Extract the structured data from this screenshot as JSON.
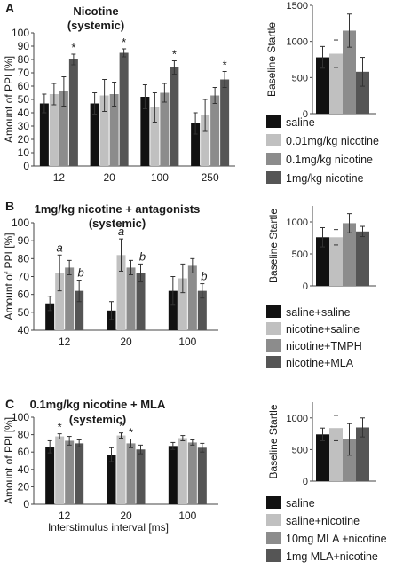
{
  "colors": {
    "black": "#111111",
    "light": "#c0c0c0",
    "mid": "#8c8c8c",
    "dark": "#555555"
  },
  "chart_data": [
    {
      "panel": "A",
      "type": "bar",
      "title": "Nicotine",
      "subtitle": "(systemic)",
      "xlabel": "",
      "ylabel": "Amount of PPI [%]",
      "ylim": [
        0,
        100
      ],
      "yticks": [
        0,
        10,
        20,
        30,
        40,
        50,
        60,
        70,
        80,
        90,
        100
      ],
      "categories": [
        "12",
        "20",
        "100",
        "250"
      ],
      "series": [
        {
          "name": "saline",
          "color": "black",
          "values": [
            47,
            47,
            52,
            32
          ],
          "err": [
            7,
            8,
            9,
            8
          ]
        },
        {
          "name": "0.01mg/kg nicotine",
          "color": "light",
          "values": [
            54,
            53,
            44,
            38
          ],
          "err": [
            8,
            12,
            11,
            12
          ]
        },
        {
          "name": "0.1mg/kg nicotine",
          "color": "mid",
          "values": [
            56,
            54,
            55,
            53
          ],
          "err": [
            11,
            9,
            7,
            6
          ]
        },
        {
          "name": "1mg/kg nicotine",
          "color": "dark",
          "values": [
            80,
            85,
            74,
            65
          ],
          "err": [
            4,
            3,
            5,
            6
          ]
        }
      ],
      "markers": [
        {
          "category": "12",
          "series": 3,
          "text": "*"
        },
        {
          "category": "20",
          "series": 3,
          "text": "*"
        },
        {
          "category": "100",
          "series": 3,
          "text": "*"
        },
        {
          "category": "250",
          "series": 3,
          "text": "*"
        }
      ],
      "inset": {
        "ylabel": "Baseline Startle",
        "ylim": [
          0,
          1500
        ],
        "yticks": [
          0,
          500,
          1000,
          1500
        ],
        "values": [
          780,
          830,
          1150,
          580
        ],
        "err": [
          150,
          190,
          230,
          200
        ]
      }
    },
    {
      "panel": "B",
      "type": "bar",
      "title": "1mg/kg nicotine + antagonists",
      "subtitle": "(systemic)",
      "xlabel": "",
      "ylabel": "Amount of PPI [%]",
      "ylim": [
        40,
        100
      ],
      "yticks": [
        40,
        50,
        60,
        70,
        80,
        90,
        100
      ],
      "categories": [
        "12",
        "20",
        "100"
      ],
      "series": [
        {
          "name": "saline+saline",
          "color": "black",
          "values": [
            55,
            51,
            62
          ],
          "err": [
            4,
            5,
            8
          ]
        },
        {
          "name": "nicotine+saline",
          "color": "light",
          "values": [
            72,
            82,
            69
          ],
          "err": [
            10,
            9,
            8
          ]
        },
        {
          "name": "nicotine+TMPH",
          "color": "mid",
          "values": [
            75,
            75,
            76
          ],
          "err": [
            4,
            4,
            4
          ]
        },
        {
          "name": "nicotine+MLA",
          "color": "dark",
          "values": [
            62,
            72,
            62
          ],
          "err": [
            6,
            5,
            4
          ]
        }
      ],
      "markers": [
        {
          "category": "12",
          "series": 1,
          "text": "a",
          "italic": true
        },
        {
          "category": "12",
          "series": 3,
          "text": "b",
          "italic": true
        },
        {
          "category": "20",
          "series": 1,
          "text": "a",
          "italic": true
        },
        {
          "category": "20",
          "series": 3,
          "text": "b",
          "italic": true
        },
        {
          "category": "100",
          "series": 3,
          "text": "b",
          "italic": true
        }
      ],
      "inset": {
        "ylabel": "Baseline Startle",
        "ylim": [
          0,
          1250
        ],
        "yticks": [
          0,
          500,
          1000
        ],
        "values": [
          760,
          760,
          980,
          850
        ],
        "err": [
          150,
          120,
          150,
          80
        ]
      }
    },
    {
      "panel": "C",
      "type": "bar",
      "title": "0.1mg/kg nicotine + MLA",
      "subtitle": "(systemic)",
      "xlabel": "Interstimulus interval [ms]",
      "ylabel": "Amount of PPI [%]",
      "ylim": [
        0,
        100
      ],
      "yticks": [
        0,
        20,
        40,
        60,
        80,
        100
      ],
      "categories": [
        "12",
        "20",
        "100"
      ],
      "series": [
        {
          "name": "saline",
          "color": "black",
          "values": [
            66,
            57,
            67
          ],
          "err": [
            7,
            8,
            4
          ]
        },
        {
          "name": "saline+nicotine",
          "color": "light",
          "values": [
            78,
            79,
            76
          ],
          "err": [
            3,
            3,
            3
          ]
        },
        {
          "name": "10mg MLA +nicotine",
          "color": "mid",
          "values": [
            73,
            70,
            71
          ],
          "err": [
            5,
            5,
            3
          ]
        },
        {
          "name": "1mg MLA+nicotine",
          "color": "dark",
          "values": [
            70,
            63,
            65
          ],
          "err": [
            4,
            5,
            5
          ]
        }
      ],
      "markers": [
        {
          "category": "12",
          "series": 1,
          "text": "*"
        },
        {
          "category": "20",
          "series": 1,
          "text": "*"
        },
        {
          "category": "20",
          "series": 2,
          "text": "*"
        }
      ],
      "inset": {
        "ylabel": "Baseline Startle",
        "ylim": [
          0,
          1250
        ],
        "yticks": [
          0,
          500,
          1000
        ],
        "values": [
          740,
          840,
          660,
          850
        ],
        "err": [
          100,
          200,
          250,
          150
        ]
      }
    }
  ]
}
